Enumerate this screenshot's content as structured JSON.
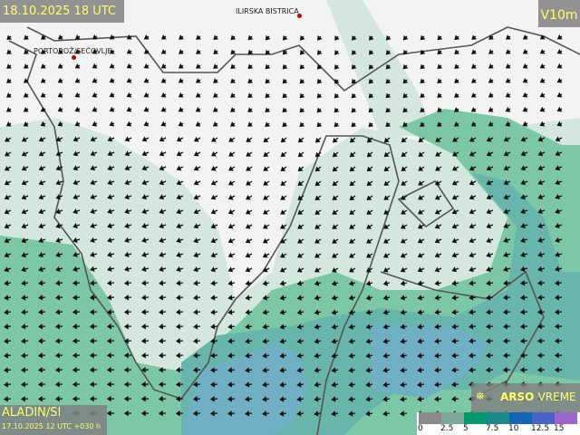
{
  "header": {
    "valid_time": "18.10.2025 18 UTC",
    "variable": "V10m"
  },
  "model": {
    "name": "ALADIN/SI",
    "run": "17.10.2025 12 UTC +030 h"
  },
  "brand": {
    "name": "ARSO",
    "suffix": "VREME",
    "icon": "satellite-icon"
  },
  "cities": [
    {
      "name": "ILIRSKA BISTRICA"
    },
    {
      "name": "PORTOROŽ/SEČOVLJE"
    }
  ],
  "legend": {
    "ticks": [
      "0",
      "2.5",
      "5",
      "7.5",
      "10",
      "12.5",
      "15"
    ],
    "colors": [
      "#8a8a8a",
      "#7fa898",
      "#009a6e",
      "#1b8a8a",
      "#1565b5",
      "#4a63c8",
      "#9966cc"
    ]
  },
  "palette": {
    "land": "#f2f2f2",
    "light": "#d4e7de",
    "mid": "#7cc7a6",
    "teal": "#68b5ab",
    "blue": "#6fb0c4",
    "coast": "#555555",
    "city_dot": "#c00000"
  }
}
